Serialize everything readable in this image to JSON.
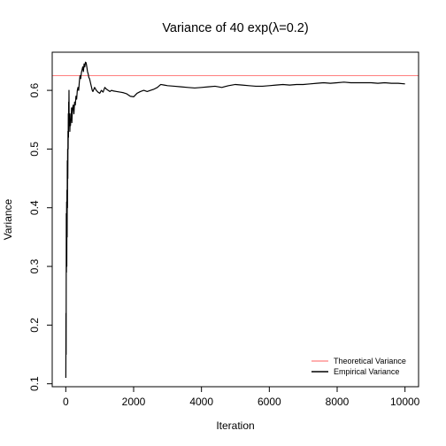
{
  "chart_data": {
    "type": "line",
    "title": "Variance of 40 exp(λ=0.2)",
    "xlabel": "Iteration",
    "ylabel": "Variance",
    "xlim": [
      -400,
      10400
    ],
    "ylim": [
      0.095,
      0.665
    ],
    "x_ticks": [
      0,
      2000,
      4000,
      6000,
      8000,
      10000
    ],
    "x_tick_labels": [
      "0",
      "2000",
      "4000",
      "6000",
      "8000",
      "10000"
    ],
    "y_ticks": [
      0.1,
      0.2,
      0.3,
      0.4,
      0.5,
      0.6
    ],
    "y_tick_labels": [
      "0.1",
      "0.2",
      "0.3",
      "0.4",
      "0.5",
      "0.6"
    ],
    "grid": false,
    "legend_position": "bottom-right",
    "series": [
      {
        "name": "Theoretical Variance",
        "color": "#ff7f7f",
        "kind": "hline",
        "value": 0.625
      },
      {
        "name": "Empirical Variance",
        "color": "#000000",
        "kind": "line",
        "x": [
          2,
          5,
          10,
          15,
          20,
          25,
          30,
          35,
          40,
          45,
          50,
          55,
          60,
          65,
          70,
          75,
          80,
          85,
          90,
          95,
          100,
          110,
          120,
          130,
          140,
          150,
          160,
          170,
          180,
          190,
          200,
          220,
          240,
          260,
          280,
          300,
          320,
          340,
          360,
          380,
          400,
          420,
          440,
          460,
          480,
          500,
          520,
          540,
          560,
          580,
          600,
          620,
          640,
          660,
          680,
          700,
          720,
          740,
          760,
          780,
          800,
          850,
          900,
          950,
          1000,
          1050,
          1100,
          1150,
          1200,
          1250,
          1300,
          1350,
          1400,
          1500,
          1600,
          1700,
          1800,
          1900,
          2000,
          2100,
          2200,
          2300,
          2400,
          2500,
          2600,
          2700,
          2800,
          2900,
          3000,
          3200,
          3400,
          3600,
          3800,
          4000,
          4200,
          4400,
          4600,
          4800,
          5000,
          5200,
          5400,
          5600,
          5800,
          6000,
          6200,
          6400,
          6600,
          6800,
          7000,
          7200,
          7400,
          7600,
          7800,
          8000,
          8200,
          8400,
          8600,
          8800,
          9000,
          9200,
          9400,
          9600,
          9800,
          10000
        ],
        "y": [
          0.11,
          0.22,
          0.15,
          0.39,
          0.29,
          0.41,
          0.3,
          0.43,
          0.35,
          0.48,
          0.4,
          0.5,
          0.45,
          0.53,
          0.5,
          0.56,
          0.52,
          0.58,
          0.55,
          0.6,
          0.54,
          0.56,
          0.53,
          0.55,
          0.54,
          0.56,
          0.55,
          0.57,
          0.545,
          0.56,
          0.57,
          0.575,
          0.56,
          0.58,
          0.575,
          0.59,
          0.585,
          0.6,
          0.605,
          0.6,
          0.615,
          0.625,
          0.62,
          0.63,
          0.635,
          0.64,
          0.632,
          0.645,
          0.64,
          0.648,
          0.647,
          0.64,
          0.632,
          0.628,
          0.622,
          0.62,
          0.615,
          0.61,
          0.605,
          0.6,
          0.598,
          0.605,
          0.6,
          0.597,
          0.595,
          0.6,
          0.597,
          0.605,
          0.602,
          0.6,
          0.598,
          0.6,
          0.599,
          0.598,
          0.597,
          0.596,
          0.594,
          0.59,
          0.589,
          0.595,
          0.598,
          0.6,
          0.598,
          0.6,
          0.602,
          0.605,
          0.61,
          0.609,
          0.608,
          0.607,
          0.606,
          0.605,
          0.604,
          0.605,
          0.606,
          0.607,
          0.605,
          0.608,
          0.61,
          0.609,
          0.608,
          0.607,
          0.607,
          0.608,
          0.609,
          0.61,
          0.609,
          0.61,
          0.61,
          0.611,
          0.612,
          0.613,
          0.612,
          0.613,
          0.614,
          0.613,
          0.613,
          0.613,
          0.613,
          0.612,
          0.613,
          0.612,
          0.612,
          0.611
        ]
      }
    ]
  }
}
